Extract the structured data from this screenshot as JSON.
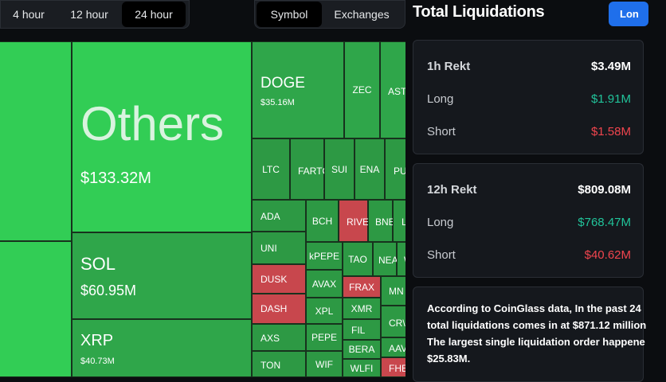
{
  "time_filters": [
    {
      "label": "4 hour",
      "active": false
    },
    {
      "label": "12 hour",
      "active": false
    },
    {
      "label": "24 hour",
      "active": true
    }
  ],
  "view_filters": [
    {
      "label": "Symbol",
      "active": true
    },
    {
      "label": "Exchanges",
      "active": false
    }
  ],
  "treemap": {
    "others": {
      "symbol": "Others",
      "value": "$133.32M"
    },
    "sol": {
      "symbol": "SOL",
      "value": "$60.95M"
    },
    "xrp": {
      "symbol": "XRP",
      "value": "$40.73M"
    },
    "doge": {
      "symbol": "DOGE",
      "value": "$35.16M"
    },
    "zec": "ZEC",
    "ast": "AST",
    "ltc": "LTC",
    "fart": "FARTC",
    "sui": "SUI",
    "ena": "ENA",
    "pu": "PU",
    "ada": "ADA",
    "bch": "BCH",
    "rive": "RIVE",
    "bnb": "BNE",
    "l": "L",
    "uni": "UNI",
    "kpepe": "kPEPE",
    "tao": "TAO",
    "near": "NEA",
    "w": "W",
    "dusk": "DUSK",
    "avax": "AVAX",
    "frax": "FRAX",
    "mn": "MN",
    "dash": "DASH",
    "xpl": "XPL",
    "xmr": "XMR",
    "crv": "CR\\",
    "fil": "FIL",
    "axs": "AXS",
    "pepe": "PEPE",
    "bera": "BERA",
    "aav": "AAV",
    "ton": "TON",
    "wif": "WIF",
    "wlfi": "WLFI",
    "fhe": "FHE"
  },
  "panel": {
    "title": "Total Liquidations",
    "long_button": "Lon",
    "h1": {
      "label": "1h Rekt",
      "total": "$3.49M",
      "long_label": "Long",
      "long": "$1.91M",
      "short_label": "Short",
      "short": "$1.58M"
    },
    "h12": {
      "label": "12h Rekt",
      "total": "$809.08M",
      "long_label": "Long",
      "long": "$768.47M",
      "short_label": "Short",
      "short": "$40.62M"
    },
    "description": [
      "According to CoinGlass data, In the past 24",
      "total liquidations comes in at $871.12 million",
      "The largest single liquidation order happene",
      "$25.83M."
    ]
  },
  "colors": {
    "bright_green": "#32cd55",
    "mid_green": "#2fa64a",
    "red": "#c8474d",
    "accent_blue": "#1f6feb",
    "long_green": "#21c39a",
    "short_red": "#f0454e"
  }
}
